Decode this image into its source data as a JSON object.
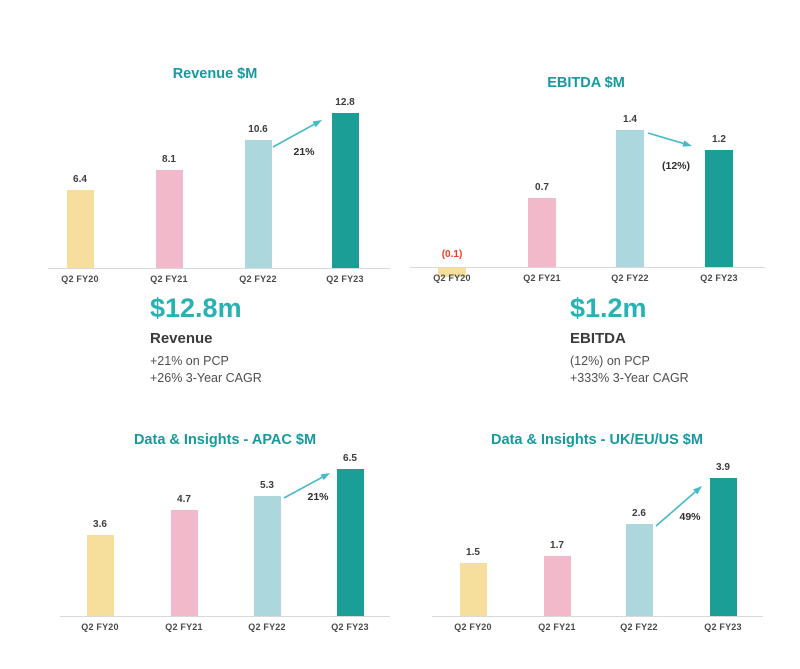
{
  "colors": {
    "title_teal": "#149aa0",
    "big_number_teal": "#29b2b4",
    "arrow_teal": "#44bac6",
    "negative_red": "#f53a28",
    "text_dark": "#3d3d3d",
    "axis_grey": "#d9d9d9",
    "bars": [
      "#f6df9d",
      "#f2b9ca",
      "#acd8dd",
      "#1b9e96"
    ]
  },
  "summaries": [
    {
      "value": "$12.8m",
      "label": "Revenue",
      "line1": "+21% on PCP",
      "line2": "+26% 3-Year CAGR"
    },
    {
      "value": "$1.2m",
      "label": "EBITDA",
      "line1": "(12%) on PCP",
      "line2": "+333% 3-Year CAGR"
    }
  ],
  "chart_data": [
    {
      "id": "revenue",
      "type": "bar",
      "title": "Revenue $M",
      "categories": [
        "Q2 FY20",
        "Q2 FY21",
        "Q2 FY22",
        "Q2 FY23"
      ],
      "values": [
        6.4,
        8.1,
        10.6,
        12.8
      ],
      "labels": [
        "6.4",
        "8.1",
        "10.6",
        "12.8"
      ],
      "annotation": {
        "text": "21%",
        "from": "Q2 FY22",
        "to": "Q2 FY23",
        "direction": "up"
      },
      "ylim": [
        0,
        14
      ],
      "grid": false,
      "legend": false
    },
    {
      "id": "ebitda",
      "type": "bar",
      "title": "EBITDA $M",
      "categories": [
        "Q2 FY20",
        "Q2 FY21",
        "Q2 FY22",
        "Q2 FY23"
      ],
      "values": [
        -0.1,
        0.7,
        1.4,
        1.2
      ],
      "labels": [
        "(0.1)",
        "0.7",
        "1.4",
        "1.2"
      ],
      "annotation": {
        "text": "(12%)",
        "from": "Q2 FY22",
        "to": "Q2 FY23",
        "direction": "down"
      },
      "ylim": [
        -0.2,
        1.6
      ],
      "grid": false,
      "legend": false
    },
    {
      "id": "apac",
      "type": "bar",
      "title": "Data & Insights - APAC $M",
      "categories": [
        "Q2 FY20",
        "Q2 FY21",
        "Q2 FY22",
        "Q2 FY23"
      ],
      "values": [
        3.6,
        4.7,
        5.3,
        6.5
      ],
      "labels": [
        "3.6",
        "4.7",
        "5.3",
        "6.5"
      ],
      "annotation": {
        "text": "21%",
        "from": "Q2 FY22",
        "to": "Q2 FY23",
        "direction": "up"
      },
      "ylim": [
        0,
        7
      ],
      "grid": false,
      "legend": false
    },
    {
      "id": "ukeuus",
      "type": "bar",
      "title": "Data & Insights - UK/EU/US $M",
      "categories": [
        "Q2 FY20",
        "Q2 FY21",
        "Q2 FY22",
        "Q2 FY23"
      ],
      "values": [
        1.5,
        1.7,
        2.6,
        3.9
      ],
      "labels": [
        "1.5",
        "1.7",
        "2.6",
        "3.9"
      ],
      "annotation": {
        "text": "49%",
        "from": "Q2 FY22",
        "to": "Q2 FY23",
        "direction": "up"
      },
      "ylim": [
        0,
        4.5
      ],
      "grid": false,
      "legend": false
    }
  ]
}
